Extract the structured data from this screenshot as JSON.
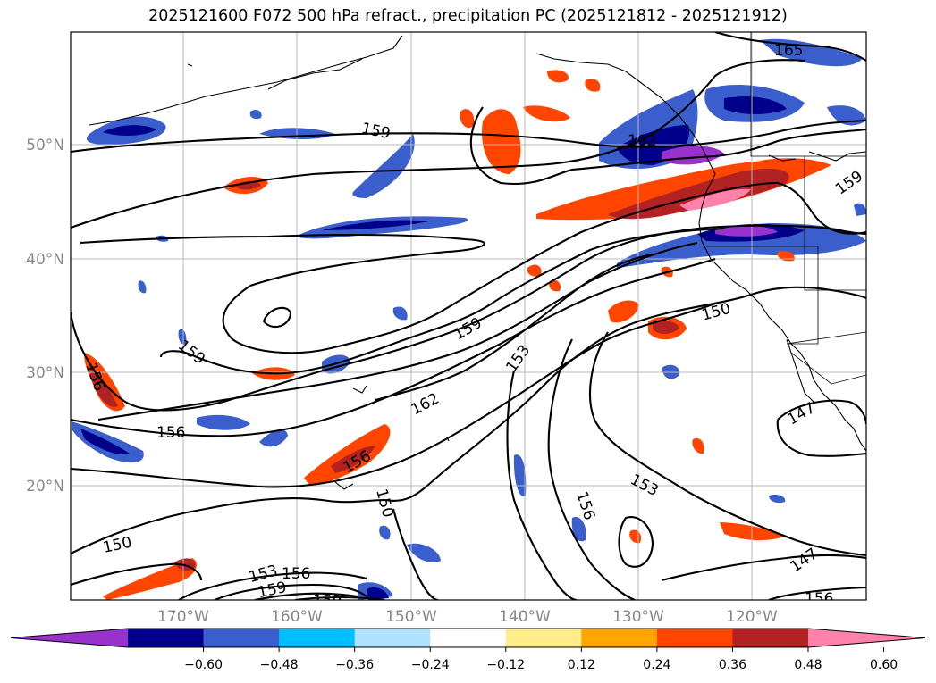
{
  "title": "2025121600 F072 500 hPa refract., precipitation PC (2025121812 - 2025121912)",
  "lat_labels": [
    "50°N",
    "40°N",
    "30°N",
    "20°N"
  ],
  "lon_labels": [
    "170°W",
    "160°W",
    "150°W",
    "140°W",
    "130°W",
    "120°W"
  ],
  "contour_labels": [
    "165",
    "162",
    "159",
    "159",
    "159",
    "159",
    "153",
    "153",
    "156",
    "156",
    "156",
    "162",
    "150",
    "150",
    "150",
    "147",
    "147",
    "153",
    "156",
    "156",
    "159",
    "159",
    "156"
  ],
  "colorbar": {
    "colors": [
      "#9932cc",
      "#00008b",
      "#3a5fcd",
      "#00bfff",
      "#b0e2ff",
      "#ffffff",
      "#ffec8b",
      "#ffa500",
      "#ff4500",
      "#b22222",
      "#ff82ab"
    ],
    "tick_labels": [
      "−0.60",
      "−0.48",
      "−0.36",
      "−0.24",
      "−0.12",
      "0.12",
      "0.24",
      "0.36",
      "0.48",
      "0.60"
    ]
  }
}
